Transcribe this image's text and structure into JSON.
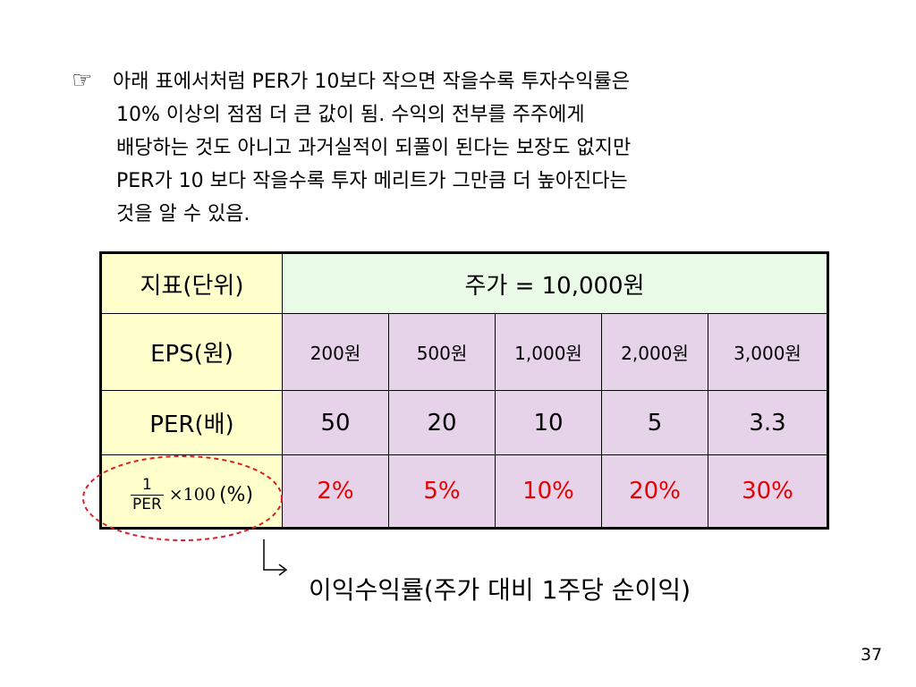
{
  "intro": {
    "bullet_icon": "pointing-hand-icon",
    "bullet_glyph": "☞",
    "lines": [
      "아래 표에서처럼 PER가 10보다  작으면 작을수록 투자수익률은",
      "10% 이상의 점점 더 큰 값이 됨. 수익의 전부를 주주에게",
      "배당하는 것도 아니고 과거실적이 되풀이 된다는 보장도 없지만",
      "PER가 10 보다 작을수록 투자 메리트가 그만큼 더 높아진다는",
      "것을 알 수 있음."
    ]
  },
  "table": {
    "header_label": "지표(단위)",
    "header_value": "주가 = 10,000원",
    "eps_label": "EPS(원)",
    "eps_values": [
      "200원",
      "500원",
      "1,000원",
      "2,000원",
      "3,000원"
    ],
    "per_label": "PER(배)",
    "per_values": [
      "50",
      "20",
      "10",
      "5",
      "3.3"
    ],
    "yield_formula": {
      "numerator": "1",
      "denominator": "PER",
      "multiplier": "×100",
      "unit": "(%)"
    },
    "yield_values": [
      "2%",
      "5%",
      "10%",
      "20%",
      "30%"
    ]
  },
  "colors": {
    "label_bg": "#ffffcc",
    "header_bg": "#e9fbe6",
    "value_bg": "#e6d3ea",
    "yield_text": "#e60000",
    "highlight_ellipse": "#d9202a"
  },
  "caption": "이익수익률(주가 대비 1주당 순이익)",
  "page_number": "37"
}
